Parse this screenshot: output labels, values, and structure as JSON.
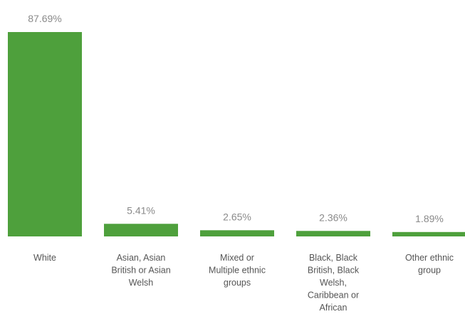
{
  "colors": {
    "bar": "#4ea03c",
    "value_text": "#8a8a8a",
    "category_text": "#555555"
  },
  "chart_data": {
    "type": "bar",
    "title": "",
    "xlabel": "",
    "ylabel": "",
    "ylim": [
      0,
      87.69
    ],
    "grid": false,
    "legend": "none",
    "categories": [
      "White",
      "Asian, Asian British or Asian Welsh",
      "Mixed or Multiple ethnic groups",
      "Black, Black British, Black Welsh, Caribbean or African",
      "Other ethnic group"
    ],
    "category_label_lines": [
      [
        "White"
      ],
      [
        "Asian, Asian",
        "British or Asian",
        "Welsh"
      ],
      [
        "Mixed or",
        "Multiple ethnic",
        "groups"
      ],
      [
        "Black, Black",
        "British, Black",
        "Welsh,",
        "Caribbean or",
        "African"
      ],
      [
        "Other ethnic",
        "group"
      ]
    ],
    "values": [
      87.69,
      5.41,
      2.65,
      2.36,
      1.89
    ],
    "value_labels": [
      "87.69%",
      "5.41%",
      "2.65%",
      "2.36%",
      "1.89%"
    ]
  }
}
